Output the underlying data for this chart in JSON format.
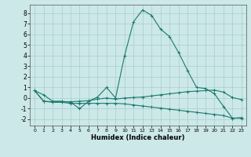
{
  "xlabel": "Humidex (Indice chaleur)",
  "ylabel": "",
  "bg_color": "#cce8e8",
  "line_color": "#1a7a6e",
  "grid_color": "#aacccc",
  "xlim": [
    -0.5,
    23.5
  ],
  "ylim": [
    -2.6,
    8.8
  ],
  "yticks": [
    -2,
    -1,
    0,
    1,
    2,
    3,
    4,
    5,
    6,
    7,
    8
  ],
  "xticks": [
    0,
    1,
    2,
    3,
    4,
    5,
    6,
    7,
    8,
    9,
    10,
    11,
    12,
    13,
    14,
    15,
    16,
    17,
    18,
    19,
    20,
    21,
    22,
    23
  ],
  "line1_x": [
    0,
    1,
    2,
    3,
    4,
    5,
    6,
    7,
    8,
    9,
    10,
    11,
    12,
    13,
    14,
    15,
    16,
    17,
    18,
    19,
    20,
    21,
    22,
    23
  ],
  "line1_y": [
    0.7,
    0.3,
    -0.3,
    -0.3,
    -0.4,
    -1.0,
    -0.3,
    0.1,
    1.0,
    0.0,
    4.0,
    7.2,
    8.3,
    7.8,
    6.5,
    5.8,
    4.3,
    2.6,
    1.0,
    0.9,
    0.4,
    -0.8,
    -1.9,
    -1.85
  ],
  "line2_x": [
    0,
    1,
    2,
    3,
    4,
    5,
    6,
    7,
    8,
    9,
    10,
    11,
    12,
    13,
    14,
    15,
    16,
    17,
    18,
    19,
    20,
    21,
    22,
    23
  ],
  "line2_y": [
    0.7,
    -0.3,
    -0.35,
    -0.35,
    -0.35,
    -0.3,
    -0.25,
    -0.1,
    0.0,
    -0.1,
    0.0,
    0.05,
    0.1,
    0.2,
    0.3,
    0.4,
    0.5,
    0.6,
    0.65,
    0.7,
    0.75,
    0.55,
    0.05,
    -0.15
  ],
  "line3_x": [
    0,
    1,
    2,
    3,
    4,
    5,
    6,
    7,
    8,
    9,
    10,
    11,
    12,
    13,
    14,
    15,
    16,
    17,
    18,
    19,
    20,
    21,
    22,
    23
  ],
  "line3_y": [
    0.7,
    -0.3,
    -0.4,
    -0.4,
    -0.5,
    -0.5,
    -0.5,
    -0.5,
    -0.5,
    -0.5,
    -0.55,
    -0.65,
    -0.75,
    -0.85,
    -0.95,
    -1.05,
    -1.15,
    -1.25,
    -1.35,
    -1.45,
    -1.55,
    -1.65,
    -1.9,
    -1.9
  ]
}
